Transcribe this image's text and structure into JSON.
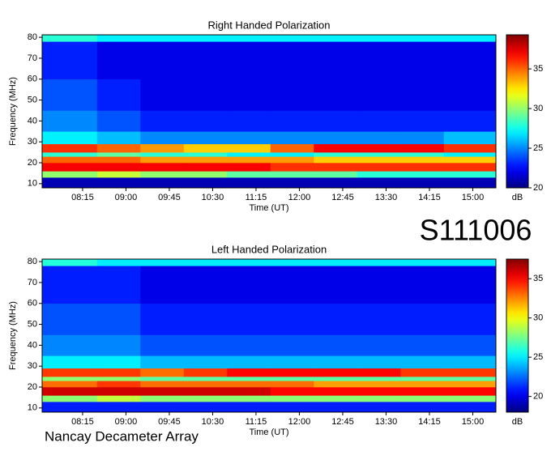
{
  "id_label": "S111006",
  "footer": "Nancay Decameter Array",
  "chart_data": [
    {
      "type": "heatmap",
      "title": "Right Handed Polarization",
      "xlabel": "Time (UT)",
      "ylabel": "Frequency (MHz)",
      "xlim": [
        453,
        924
      ],
      "xticks": [
        {
          "value": 495,
          "label": "08:15"
        },
        {
          "value": 540,
          "label": "09:00"
        },
        {
          "value": 585,
          "label": "09:45"
        },
        {
          "value": 630,
          "label": "10:30"
        },
        {
          "value": 675,
          "label": "11:15"
        },
        {
          "value": 720,
          "label": "12:00"
        },
        {
          "value": 765,
          "label": "12:45"
        },
        {
          "value": 810,
          "label": "13:30"
        },
        {
          "value": 855,
          "label": "14:15"
        },
        {
          "value": 900,
          "label": "15:00"
        }
      ],
      "ylim": [
        8,
        81.2
      ],
      "yticks": [
        10,
        20,
        30,
        40,
        50,
        60,
        70,
        80
      ],
      "xbins": [
        453,
        510,
        555,
        600,
        645,
        690,
        735,
        780,
        825,
        870,
        924
      ],
      "ybins": [
        8,
        13,
        16,
        20,
        23,
        25,
        29,
        35,
        45,
        60,
        78,
        81.2
      ],
      "z": [
        [
          21,
          21,
          21,
          21,
          21,
          21,
          21,
          21,
          21,
          21
        ],
        [
          30,
          31,
          30,
          30,
          29,
          29,
          29,
          28,
          28,
          28
        ],
        [
          37,
          37,
          37,
          37,
          37,
          36,
          36,
          36,
          36,
          36
        ],
        [
          35,
          35,
          34,
          34,
          34,
          34,
          33,
          33,
          33,
          33
        ],
        [
          28,
          29,
          28,
          28,
          27,
          27,
          28,
          28,
          28,
          27
        ],
        [
          36,
          35,
          34,
          33,
          33,
          35,
          37,
          37,
          37,
          36
        ],
        [
          27,
          26,
          25,
          25,
          25,
          25,
          25,
          25,
          25,
          26
        ],
        [
          25,
          24,
          23,
          23,
          23,
          23,
          23,
          23,
          23,
          23
        ],
        [
          24,
          23,
          22,
          22,
          22,
          22,
          22,
          22,
          22,
          22
        ],
        [
          23,
          22,
          22,
          22,
          22,
          22,
          22,
          22,
          22,
          22
        ],
        [
          28,
          27,
          27,
          27,
          27,
          27,
          27,
          27,
          27,
          27
        ]
      ],
      "colormap": "jet",
      "zlim": [
        20,
        39.3
      ],
      "zticks": [
        20,
        25,
        30,
        35
      ],
      "colorbar_label": "dB"
    },
    {
      "type": "heatmap",
      "title": "Left Handed Polarization",
      "xlabel": "Time (UT)",
      "ylabel": "Frequency (MHz)",
      "xlim": [
        453,
        924
      ],
      "xticks": [
        {
          "value": 495,
          "label": "08:15"
        },
        {
          "value": 540,
          "label": "09:00"
        },
        {
          "value": 585,
          "label": "09:45"
        },
        {
          "value": 630,
          "label": "10:30"
        },
        {
          "value": 675,
          "label": "11:15"
        },
        {
          "value": 720,
          "label": "12:00"
        },
        {
          "value": 765,
          "label": "12:45"
        },
        {
          "value": 810,
          "label": "13:30"
        },
        {
          "value": 855,
          "label": "14:15"
        },
        {
          "value": 900,
          "label": "15:00"
        }
      ],
      "ylim": [
        8,
        81.2
      ],
      "yticks": [
        10,
        20,
        30,
        40,
        50,
        60,
        70,
        80
      ],
      "xbins": [
        453,
        510,
        555,
        600,
        645,
        690,
        735,
        780,
        825,
        870,
        924
      ],
      "ybins": [
        8,
        13,
        16,
        20,
        23,
        25,
        29,
        35,
        45,
        60,
        78,
        81.2
      ],
      "z": [
        [
          21,
          21,
          21,
          21,
          21,
          21,
          21,
          21,
          21,
          21
        ],
        [
          28,
          29,
          28,
          28,
          28,
          28,
          28,
          28,
          28,
          28
        ],
        [
          36,
          36,
          36,
          36,
          36,
          35,
          35,
          35,
          35,
          35
        ],
        [
          33,
          34,
          33,
          33,
          33,
          33,
          32,
          32,
          32,
          32
        ],
        [
          28,
          28,
          27,
          27,
          27,
          27,
          27,
          27,
          27,
          27
        ],
        [
          34,
          34,
          33,
          34,
          35,
          35,
          35,
          35,
          34,
          34
        ],
        [
          25,
          25,
          24,
          24,
          24,
          24,
          24,
          24,
          24,
          24
        ],
        [
          23,
          23,
          22,
          22,
          22,
          22,
          22,
          22,
          22,
          22
        ],
        [
          22,
          22,
          21,
          21,
          21,
          21,
          21,
          21,
          21,
          21
        ],
        [
          21,
          21,
          20,
          20,
          20,
          20,
          20,
          20,
          20,
          20
        ],
        [
          26,
          25,
          25,
          25,
          25,
          25,
          25,
          25,
          25,
          25
        ]
      ],
      "colormap": "jet",
      "zlim": [
        18,
        37.5
      ],
      "zticks": [
        20,
        25,
        30,
        35
      ],
      "colorbar_label": "dB"
    }
  ]
}
